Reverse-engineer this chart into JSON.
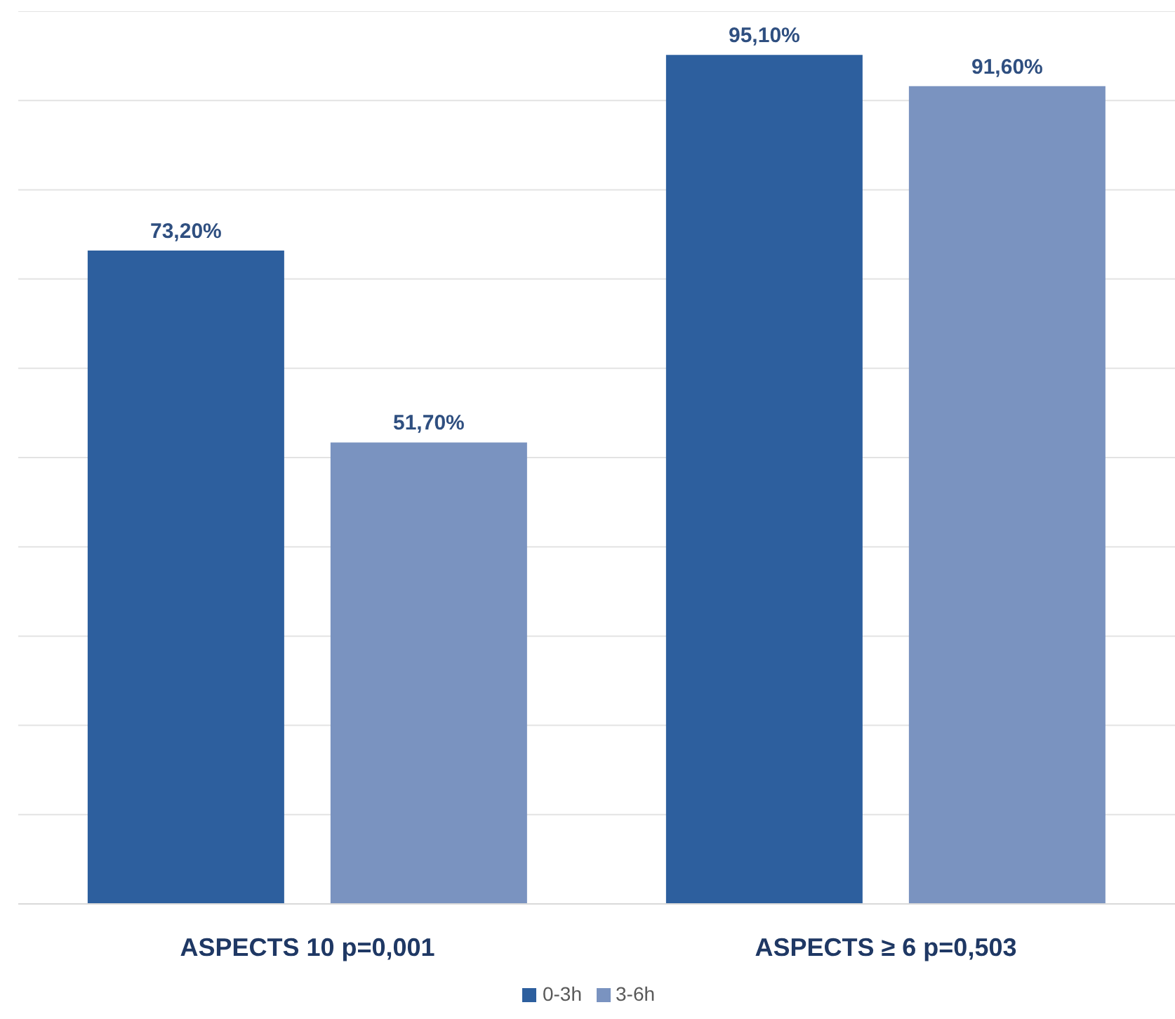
{
  "chart_data": {
    "type": "bar",
    "categories": [
      "ASPECTS 10 p=0,001",
      "ASPECTS ≥ 6 p=0,503"
    ],
    "series": [
      {
        "name": "0-3h",
        "color": "#2d5f9e",
        "values": [
          73.2,
          95.1
        ],
        "value_labels": [
          "73,20%",
          "95,10%"
        ]
      },
      {
        "name": "3-6h",
        "color": "#7a93c0",
        "values": [
          51.7,
          91.6
        ],
        "value_labels": [
          "51,70%",
          "91,60%"
        ]
      }
    ],
    "ylim": [
      0,
      100
    ],
    "tick_labels": "x",
    "grid": "y",
    "legend": "bottom"
  }
}
